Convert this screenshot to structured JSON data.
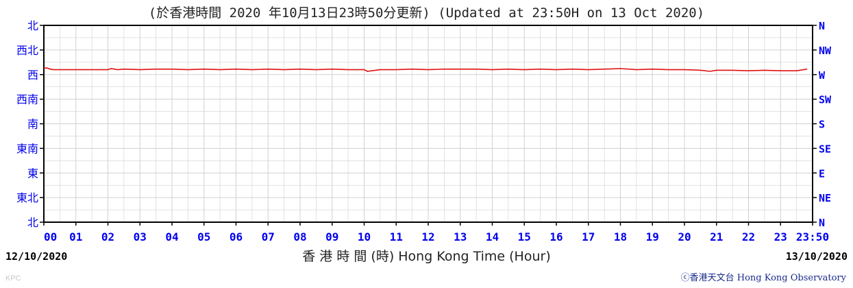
{
  "header": {
    "title": "(於香港時間 2020 年10月13日23時50分更新) (Updated at 23:50H on 13 Oct 2020)"
  },
  "footer": {
    "x_axis_title": "香 港 時 間 (時)  Hong Kong Time (Hour)",
    "start_date": "12/10/2020",
    "end_date": "13/10/2020",
    "credit": "ⓒ香港天文台 Hong Kong Observatory",
    "corner_mark": "KPC"
  },
  "colors": {
    "axis_label": "#0000ee",
    "grid": "#d0d0d0",
    "series": "#e01010",
    "frame": "#000000"
  },
  "chart_data": {
    "type": "line",
    "title": "",
    "xlabel": "香 港 時 間 (時)  Hong Kong Time (Hour)",
    "ylabel": "",
    "x_ticks": [
      "00",
      "01",
      "02",
      "03",
      "04",
      "05",
      "06",
      "07",
      "08",
      "09",
      "10",
      "11",
      "12",
      "13",
      "14",
      "15",
      "16",
      "17",
      "18",
      "19",
      "20",
      "21",
      "22",
      "23",
      "23:50"
    ],
    "y_ticks_left": [
      "北",
      "西北",
      "西",
      "西南",
      "南",
      "東南",
      "東",
      "東北",
      "北"
    ],
    "y_ticks_right": [
      "N",
      "NW",
      "W",
      "SW",
      "S",
      "SE",
      "E",
      "NE",
      "N"
    ],
    "xlim": [
      0,
      24
    ],
    "ylim": [
      0,
      360
    ],
    "y_axis_reversed": true,
    "grid": true,
    "series": [
      {
        "name": "",
        "color": "#e01010",
        "x": [
          0,
          0.1,
          0.2,
          0.3,
          0.5,
          1,
          1.5,
          2,
          2.1,
          2.3,
          2.5,
          3,
          3.5,
          4,
          4.5,
          5,
          5.5,
          6,
          6.5,
          7,
          7.5,
          8,
          8.5,
          9,
          9.5,
          10,
          10.1,
          10.5,
          11,
          11.5,
          12,
          12.5,
          13,
          13.5,
          14,
          14.5,
          15,
          15.5,
          16,
          16.5,
          17,
          17.5,
          18,
          18.5,
          19,
          19.5,
          20,
          20.5,
          20.8,
          21,
          21.5,
          22,
          22.5,
          23,
          23.5,
          23.83
        ],
        "values": [
          78,
          78,
          80,
          81,
          81,
          81,
          81,
          81,
          79,
          81,
          80,
          81,
          80,
          80,
          81,
          80,
          81,
          80,
          81,
          80,
          81,
          80,
          81,
          80,
          81,
          81,
          84,
          81,
          81,
          80,
          81,
          80,
          80,
          80,
          81,
          80,
          81,
          80,
          81,
          80,
          81,
          80,
          79,
          81,
          80,
          81,
          81,
          82,
          84,
          82,
          82,
          83,
          82,
          83,
          83,
          80
        ]
      }
    ]
  }
}
